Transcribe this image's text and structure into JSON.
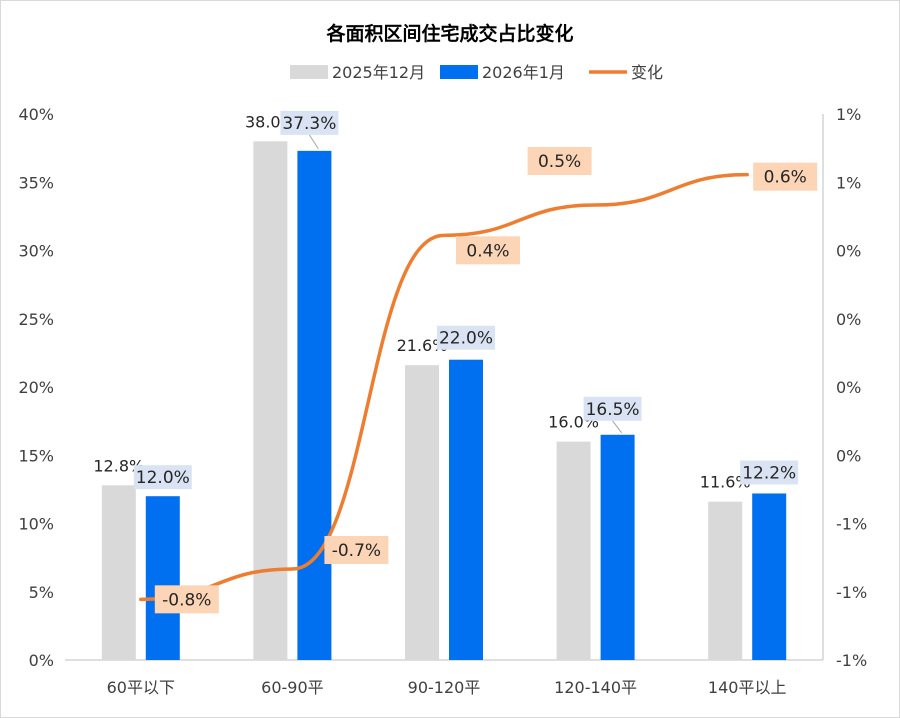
{
  "chart_data": {
    "type": "bar",
    "title": "各面积区间住宅成交占比变化",
    "categories": [
      "60平以下",
      "60-90平",
      "90-120平",
      "120-140平",
      "140平以上"
    ],
    "series": [
      {
        "name": "2025年12月",
        "type": "bar",
        "axis": "left",
        "color": "#d9d9d9",
        "values": [
          12.8,
          38.0,
          21.6,
          16.0,
          11.6
        ],
        "labels": [
          "12.8%",
          "38.0%",
          "21.6%",
          "16.0%",
          "11.6%"
        ]
      },
      {
        "name": "2026年1月",
        "type": "bar",
        "axis": "left",
        "color": "#0070f0",
        "values": [
          12.0,
          37.3,
          22.0,
          16.5,
          12.2
        ],
        "labels": [
          "12.0%",
          "37.3%",
          "22.0%",
          "16.5%",
          "12.2%"
        ]
      },
      {
        "name": "变化",
        "type": "line",
        "axis": "right",
        "color": "#ed7d31",
        "values": [
          -0.8,
          -0.7,
          0.4,
          0.5,
          0.6
        ],
        "labels": [
          "-0.8%",
          "-0.7%",
          "0.4%",
          "0.5%",
          "0.6%"
        ]
      }
    ],
    "y_left": {
      "range": [
        0,
        40
      ],
      "ticks": [
        0,
        5,
        10,
        15,
        20,
        25,
        30,
        35,
        40
      ],
      "tick_labels": [
        "0%",
        "5%",
        "10%",
        "15%",
        "20%",
        "25%",
        "30%",
        "35%",
        "40%"
      ]
    },
    "y_right": {
      "range": [
        -1.0,
        0.8
      ],
      "tick_labels": [
        "-1%",
        "-1%",
        "-1%",
        "0%",
        "0%",
        "0%",
        "0%",
        "1%",
        "1%"
      ]
    },
    "legend_position": "top-center",
    "grid": false
  }
}
